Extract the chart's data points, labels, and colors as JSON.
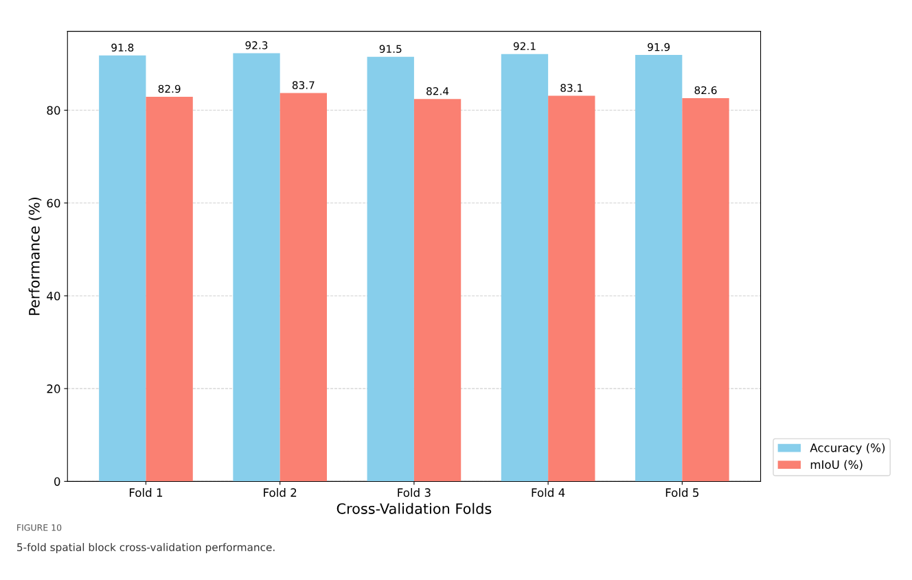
{
  "chart_data": {
    "type": "bar",
    "xlabel": "Cross-Validation Folds",
    "ylabel": "Performance (%)",
    "categories": [
      "Fold 1",
      "Fold 2",
      "Fold 3",
      "Fold 4",
      "Fold 5"
    ],
    "series": [
      {
        "name": "Accuracy (%)",
        "color": "#87ceeb",
        "values": [
          91.8,
          92.3,
          91.5,
          92.1,
          91.9
        ]
      },
      {
        "name": "mIoU (%)",
        "color": "#fa8072",
        "values": [
          82.9,
          83.7,
          82.4,
          83.1,
          82.6
        ]
      }
    ],
    "ylim": [
      0,
      97
    ],
    "yticks": [
      0,
      20,
      40,
      60,
      80
    ],
    "grid": "y",
    "legend": "bottom right",
    "data_labels": true,
    "annotations": [
      "FIGURE 10",
      "5-fold spatial block cross-validation performance."
    ]
  }
}
